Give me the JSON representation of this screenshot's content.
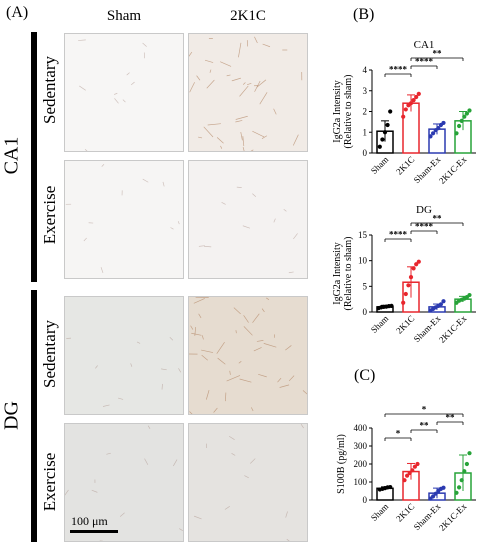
{
  "panel_labels": {
    "a": "(A)",
    "b": "(B)",
    "c": "(C)"
  },
  "columns": [
    "Sham",
    "2K1C"
  ],
  "regions": {
    "ca1": "CA1",
    "dg": "DG"
  },
  "conditions": {
    "sed": "Sedentary",
    "ex": "Exercise"
  },
  "scale_bar": "100 μm",
  "tile_colors": {
    "ca1_sed_sham": "#f7f6f5",
    "ca1_sed_2k1c": "#f1ebe6",
    "ca1_ex_sham": "#f6f5f4",
    "ca1_ex_2k1c": "#f4f2f1",
    "dg_sed_sham": "#e6e7e4",
    "dg_sed_2k1c": "#e6dcd0",
    "dg_ex_sham": "#e3e3e1",
    "dg_ex_2k1c": "#e5e3e0"
  },
  "chart_data": [
    {
      "id": "ca1",
      "type": "bar",
      "title": "CA1",
      "ylabel": "IgG2a Intensity\n(Relative to sham)",
      "ylim": [
        0,
        4
      ],
      "yticks": [
        "0",
        "1",
        "2",
        "3",
        "4"
      ],
      "categories": [
        "Sham",
        "2K1C",
        "Sham-Ex",
        "2K1C-Ex"
      ],
      "values": [
        1.05,
        2.4,
        1.15,
        1.55
      ],
      "errors": [
        0.5,
        0.4,
        0.25,
        0.45
      ],
      "colors": [
        "#000000",
        "#e8262d",
        "#2b3ab0",
        "#27a339"
      ],
      "points": [
        [
          0.3,
          0.65,
          1.0,
          1.35,
          2.0
        ],
        [
          1.75,
          2.1,
          2.3,
          2.4,
          2.55,
          2.7,
          2.85
        ],
        [
          0.8,
          0.95,
          1.1,
          1.2,
          1.35,
          1.45
        ],
        [
          0.95,
          1.3,
          1.55,
          1.75,
          1.9,
          2.05
        ]
      ],
      "sig": [
        {
          "from": 0,
          "to": 1,
          "label": "****"
        },
        {
          "from": 1,
          "to": 2,
          "label": "****"
        },
        {
          "from": 1,
          "to": 3,
          "label": "**"
        }
      ]
    },
    {
      "id": "dg",
      "type": "bar",
      "title": "DG",
      "ylabel": "IgG2a Intensity\n(Relative to sham)",
      "ylim": [
        0,
        15
      ],
      "yticks": [
        "0",
        "5",
        "10",
        "15"
      ],
      "categories": [
        "Sham",
        "2K1C",
        "Sham-Ex",
        "2K1C-Ex"
      ],
      "values": [
        1.0,
        5.8,
        1.0,
        2.5
      ],
      "errors": [
        0.3,
        3.0,
        0.55,
        0.55
      ],
      "colors": [
        "#000000",
        "#e8262d",
        "#2b3ab0",
        "#27a339"
      ],
      "points": [
        [
          0.75,
          0.9,
          1.0,
          1.05,
          1.15,
          1.2
        ],
        [
          1.8,
          3.5,
          5.2,
          6.8,
          8.5,
          9.3,
          9.8
        ],
        [
          0.3,
          0.6,
          0.9,
          1.2,
          1.5,
          2.1
        ],
        [
          1.8,
          2.2,
          2.4,
          2.6,
          2.9,
          3.3
        ]
      ],
      "sig": [
        {
          "from": 0,
          "to": 1,
          "label": "****"
        },
        {
          "from": 1,
          "to": 2,
          "label": "****"
        },
        {
          "from": 1,
          "to": 3,
          "label": "**"
        }
      ]
    },
    {
      "id": "s100b",
      "type": "bar",
      "title": "",
      "ylabel": "S100B (pg/ml)",
      "ylim": [
        0,
        400
      ],
      "yticks": [
        "0",
        "100",
        "200",
        "300",
        "400"
      ],
      "categories": [
        "Sham",
        "2K1C",
        "Sham-Ex",
        "2K1C-Ex"
      ],
      "values": [
        65,
        158,
        38,
        150
      ],
      "errors": [
        8,
        45,
        28,
        100
      ],
      "colors": [
        "#000000",
        "#e8262d",
        "#2b3ab0",
        "#27a339"
      ],
      "points": [
        [
          58,
          62,
          66,
          70,
          72
        ],
        [
          110,
          135,
          150,
          165,
          185,
          200
        ],
        [
          8,
          20,
          35,
          50,
          62,
          68
        ],
        [
          40,
          70,
          110,
          160,
          200,
          260
        ]
      ],
      "sig": [
        {
          "from": 0,
          "to": 1,
          "label": "*"
        },
        {
          "from": 1,
          "to": 2,
          "label": "**"
        },
        {
          "from": 2,
          "to": 3,
          "label": "**"
        },
        {
          "from": 0,
          "to": 3,
          "label": "*"
        }
      ]
    }
  ]
}
